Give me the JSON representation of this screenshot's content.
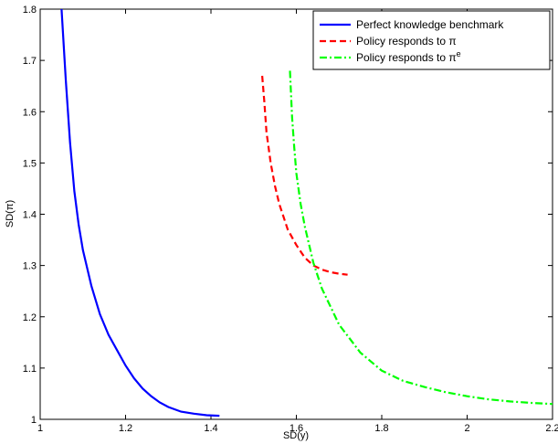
{
  "chart_data": {
    "type": "line",
    "title": "",
    "xlabel": "SD(y)",
    "ylabel": "SD(π)",
    "xlim": [
      1,
      2.2
    ],
    "ylim": [
      1,
      1.8
    ],
    "xticks": [
      1,
      1.2,
      1.4,
      1.6,
      1.8,
      2,
      2.2
    ],
    "xtick_labels": [
      "1",
      "1.2",
      "1.4",
      "1.6",
      "1.8",
      "2",
      "2.2"
    ],
    "yticks": [
      1,
      1.1,
      1.2,
      1.3,
      1.4,
      1.5,
      1.6,
      1.7,
      1.8
    ],
    "ytick_labels": [
      "1",
      "1.1",
      "1.2",
      "1.3",
      "1.4",
      "1.5",
      "1.6",
      "1.7",
      "1.8"
    ],
    "grid": false,
    "legend": "top-right",
    "series": [
      {
        "name": "Perfect knowledge benchmark",
        "legend_base": "Perfect knowledge benchmark",
        "legend_sup": "",
        "color": "#0000ff",
        "style": "solid",
        "x": [
          1.05,
          1.06,
          1.07,
          1.08,
          1.09,
          1.1,
          1.12,
          1.14,
          1.16,
          1.18,
          1.2,
          1.22,
          1.24,
          1.26,
          1.28,
          1.3,
          1.33,
          1.36,
          1.39,
          1.42
        ],
        "y": [
          1.8,
          1.66,
          1.54,
          1.445,
          1.38,
          1.33,
          1.26,
          1.205,
          1.165,
          1.135,
          1.105,
          1.08,
          1.06,
          1.045,
          1.033,
          1.024,
          1.015,
          1.011,
          1.008,
          1.007
        ]
      },
      {
        "name": "Policy responds to π",
        "legend_base": "Policy responds to π",
        "legend_sup": "",
        "color": "#ff0000",
        "style": "dashed",
        "x": [
          1.52,
          1.525,
          1.53,
          1.54,
          1.55,
          1.56,
          1.58,
          1.6,
          1.62,
          1.64,
          1.66,
          1.68,
          1.7,
          1.72
        ],
        "y": [
          1.67,
          1.62,
          1.56,
          1.5,
          1.455,
          1.42,
          1.37,
          1.34,
          1.315,
          1.3,
          1.292,
          1.287,
          1.284,
          1.282
        ]
      },
      {
        "name": "Policy responds to πe",
        "legend_base": "Policy responds to π",
        "legend_sup": "e",
        "color": "#00ff00",
        "style": "dashdot",
        "x": [
          1.585,
          1.59,
          1.595,
          1.6,
          1.61,
          1.62,
          1.64,
          1.66,
          1.7,
          1.75,
          1.8,
          1.85,
          1.9,
          1.95,
          2.0,
          2.05,
          2.1,
          2.15,
          2.2
        ],
        "y": [
          1.68,
          1.59,
          1.53,
          1.48,
          1.42,
          1.375,
          1.305,
          1.255,
          1.185,
          1.13,
          1.095,
          1.075,
          1.063,
          1.053,
          1.045,
          1.039,
          1.035,
          1.032,
          1.03
        ]
      }
    ]
  }
}
